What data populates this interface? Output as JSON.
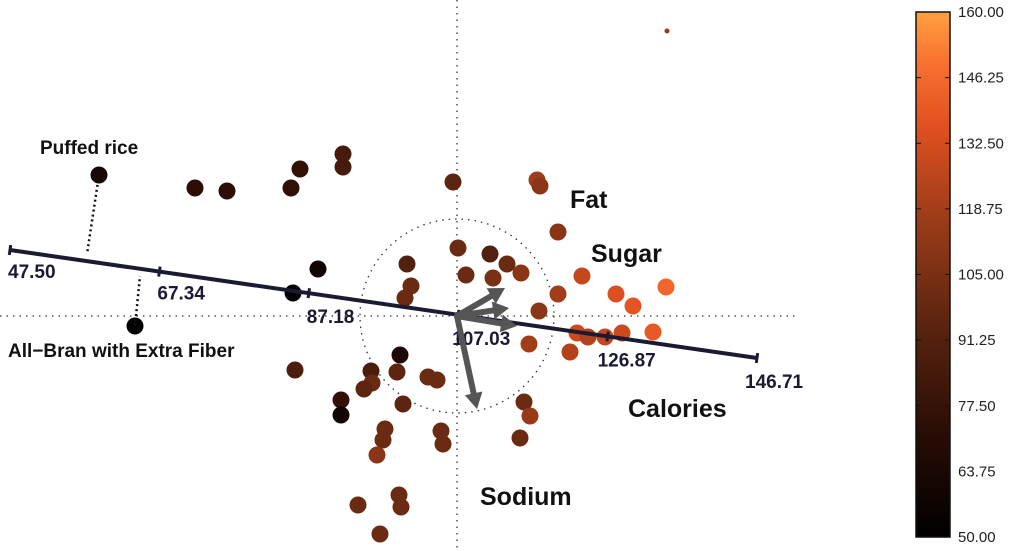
{
  "chart_data": {
    "type": "scatter",
    "title": "",
    "xlabel": "",
    "ylabel": "",
    "points": [
      {
        "x": -358,
        "y": -141,
        "value": 62
      },
      {
        "x": -262,
        "y": -128,
        "value": 73
      },
      {
        "x": -230,
        "y": -125,
        "value": 73
      },
      {
        "x": -157,
        "y": -147,
        "value": 75
      },
      {
        "x": -166,
        "y": -128,
        "value": 75
      },
      {
        "x": -114,
        "y": -162,
        "value": 85
      },
      {
        "x": -114,
        "y": -149,
        "value": 85
      },
      {
        "x": -4,
        "y": -134,
        "value": 95
      },
      {
        "x": 80,
        "y": -136,
        "value": 118
      },
      {
        "x": 83,
        "y": -130,
        "value": 110
      },
      {
        "x": 101,
        "y": -84,
        "value": 110
      },
      {
        "x": 209,
        "y": -29,
        "value": 145
      },
      {
        "x": -139,
        "y": -47,
        "value": 58
      },
      {
        "x": -50,
        "y": -52,
        "value": 90
      },
      {
        "x": 1,
        "y": -68,
        "value": 100
      },
      {
        "x": 33,
        "y": -62,
        "value": 90
      },
      {
        "x": 9,
        "y": -41,
        "value": 100
      },
      {
        "x": 36,
        "y": -38,
        "value": 105
      },
      {
        "x": 50,
        "y": -52,
        "value": 100
      },
      {
        "x": 64,
        "y": -43,
        "value": 110
      },
      {
        "x": 125,
        "y": -40,
        "value": 128
      },
      {
        "x": 101,
        "y": -22,
        "value": 118
      },
      {
        "x": 82,
        "y": -5,
        "value": 110
      },
      {
        "x": 159,
        "y": -22,
        "value": 135
      },
      {
        "x": 176,
        "y": -10,
        "value": 138
      },
      {
        "x": -46,
        "y": -30,
        "value": 100
      },
      {
        "x": -52,
        "y": -18,
        "value": 100
      },
      {
        "x": 120,
        "y": 17,
        "value": 130
      },
      {
        "x": 131,
        "y": 21,
        "value": 123
      },
      {
        "x": 148,
        "y": 21,
        "value": 128
      },
      {
        "x": 165,
        "y": 17,
        "value": 130
      },
      {
        "x": 196,
        "y": 16,
        "value": 140
      },
      {
        "x": 72,
        "y": 28,
        "value": 118
      },
      {
        "x": 113,
        "y": 36,
        "value": 123
      },
      {
        "x": -57,
        "y": 39,
        "value": 65
      },
      {
        "x": -86,
        "y": 55,
        "value": 87
      },
      {
        "x": -60,
        "y": 56,
        "value": 95
      },
      {
        "x": -29,
        "y": 61,
        "value": 100
      },
      {
        "x": -20,
        "y": 64,
        "value": 100
      },
      {
        "x": -162,
        "y": 54,
        "value": 88
      },
      {
        "x": -85,
        "y": 67,
        "value": 100
      },
      {
        "x": -93,
        "y": 73,
        "value": 95
      },
      {
        "x": -116,
        "y": 84,
        "value": 75
      },
      {
        "x": -116,
        "y": 99,
        "value": 60
      },
      {
        "x": -54,
        "y": 88,
        "value": 95
      },
      {
        "x": 67,
        "y": 86,
        "value": 100
      },
      {
        "x": 73,
        "y": 100,
        "value": 115
      },
      {
        "x": -72,
        "y": 113,
        "value": 100
      },
      {
        "x": -74,
        "y": 124,
        "value": 100
      },
      {
        "x": -16,
        "y": 115,
        "value": 100
      },
      {
        "x": -14,
        "y": 128,
        "value": 100
      },
      {
        "x": 63,
        "y": 122,
        "value": 100
      },
      {
        "x": -80,
        "y": 139,
        "value": 110
      },
      {
        "x": -58,
        "y": 179,
        "value": 100
      },
      {
        "x": -56,
        "y": 191,
        "value": 100
      },
      {
        "x": -99,
        "y": 189,
        "value": 100
      },
      {
        "x": -77,
        "y": 218,
        "value": 100
      },
      {
        "x": -164,
        "y": -23,
        "value": 50
      },
      {
        "x": -322,
        "y": 10,
        "value": 50
      }
    ],
    "ticks": [
      "47.50",
      "67.34",
      "87.18",
      "107.03",
      "126.87",
      "146.71"
    ],
    "colorbar": {
      "range": [
        50.0,
        160.0
      ],
      "ticks": [
        "160.00",
        "146.25",
        "132.50",
        "118.75",
        "105.00",
        "91.25",
        "77.50",
        "63.75",
        "50.00"
      ]
    },
    "point_labels": [
      {
        "text": "Puffed rice",
        "x": -358,
        "y": -141
      },
      {
        "text": "All−Bran with Extra Fiber",
        "x": -322,
        "y": 10
      }
    ],
    "arrows": [
      {
        "name": "Fat",
        "dx": 48,
        "dy": -28
      },
      {
        "name": "Sugar",
        "dx": 52,
        "dy": -8
      },
      {
        "name": "Calories",
        "dx": 60,
        "dy": 10
      },
      {
        "name": "Sodium",
        "dx": 20,
        "dy": 93
      }
    ],
    "arrow_labels": [
      "Fat",
      "Sugar",
      "Calories",
      "Sodium"
    ],
    "colors": {
      "axis": "#1a1a33",
      "arrow": "#555555",
      "low": "#000000",
      "high": "#ffa040"
    }
  }
}
